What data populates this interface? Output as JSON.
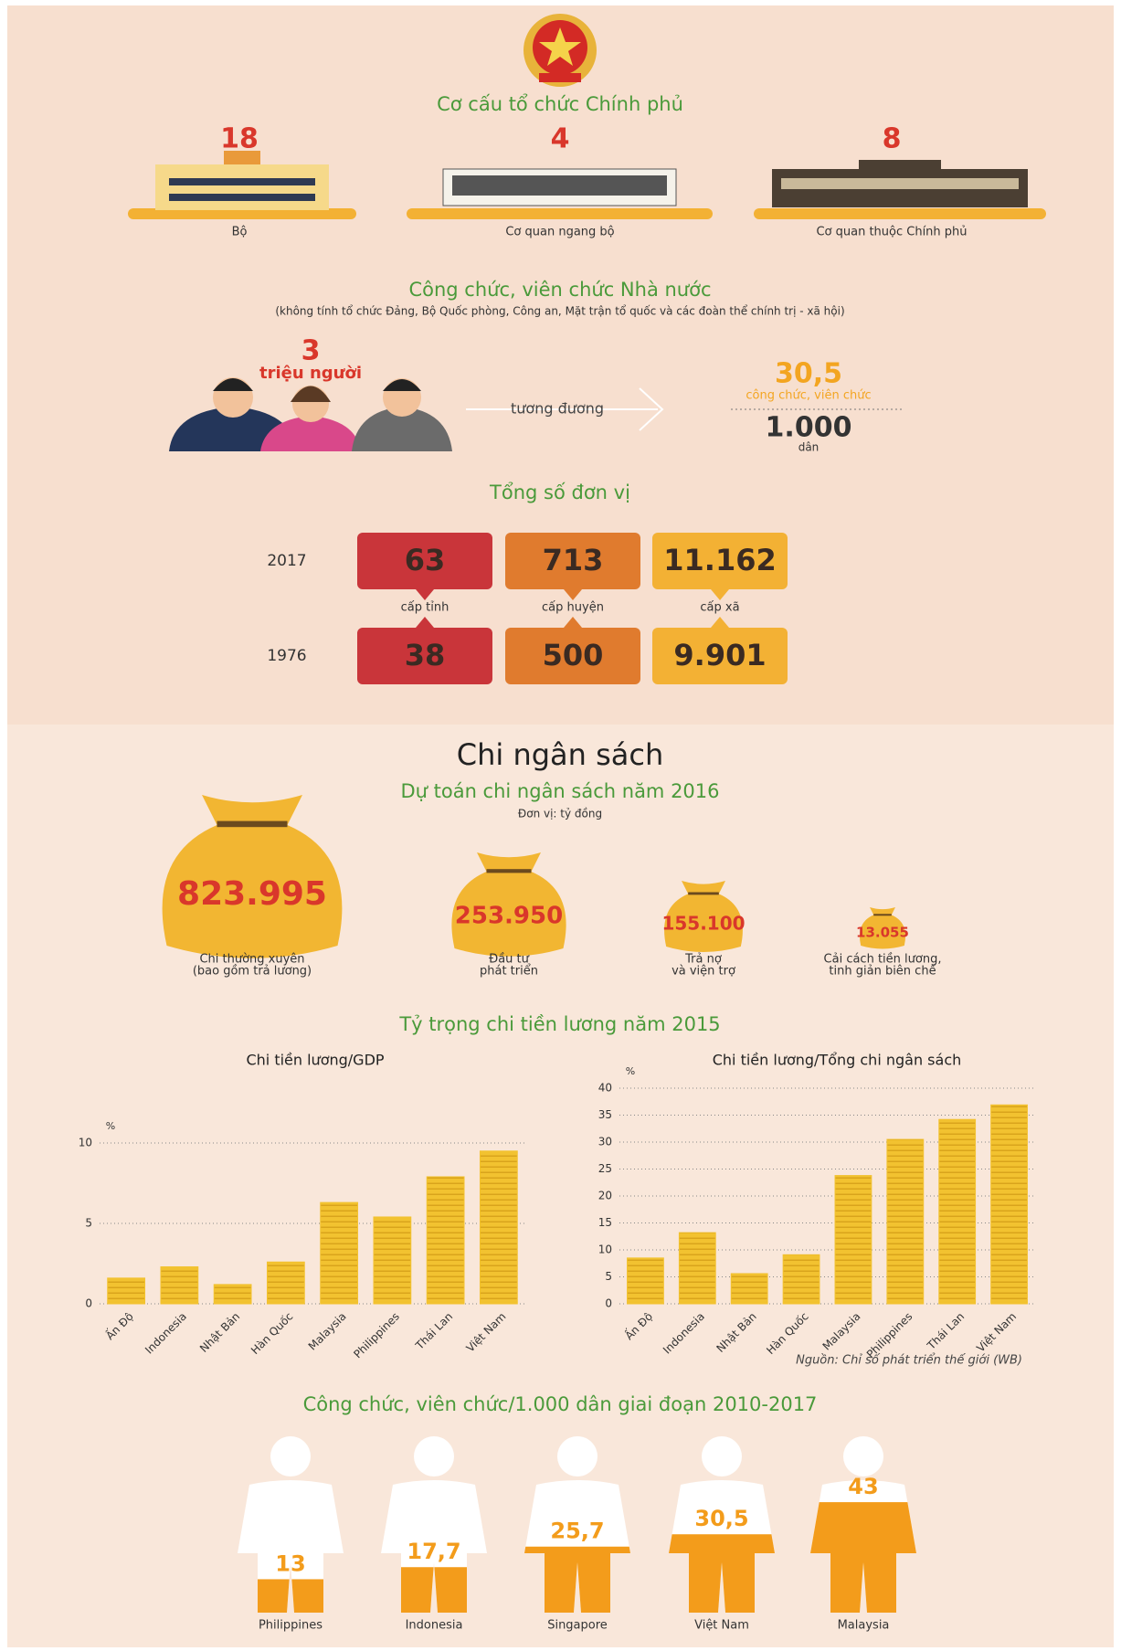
{
  "org": {
    "title": "Cơ cấu tổ chức Chính phủ",
    "items": [
      {
        "value": "18",
        "label": "Bộ"
      },
      {
        "value": "4",
        "label": "Cơ quan ngang bộ"
      },
      {
        "value": "8",
        "label": "Cơ quan thuộc Chính phủ"
      }
    ]
  },
  "staff": {
    "title": "Công chức, viên chức Nhà nước",
    "note": "(không tính tổ chức Đảng, Bộ Quốc phòng, Công an, Mặt trận tổ quốc và các đoàn thể chính trị - xã hội)",
    "total": "3",
    "total_unit": "triệu người",
    "equivalent": "tương đương",
    "ratio": "30,5",
    "ratio_label": "công chức, viên chức",
    "per": "1.000",
    "per_label": "dân"
  },
  "units": {
    "title": "Tổng số đơn vị",
    "levels": [
      "cấp tỉnh",
      "cấp huyện",
      "cấp xã"
    ],
    "rows": [
      {
        "year": "2017",
        "values": [
          "63",
          "713",
          "11.162"
        ]
      },
      {
        "year": "1976",
        "values": [
          "38",
          "500",
          "9.901"
        ]
      }
    ]
  },
  "budget": {
    "heading": "Chi ngân sách",
    "title": "Dự toán chi ngân sách năm 2016",
    "unit": "Đơn vị: tỷ đồng",
    "items": [
      {
        "value": "823.995",
        "label": [
          "Chi thường xuyên",
          "(bao gồm trả lương)"
        ]
      },
      {
        "value": "253.950",
        "label": [
          "Đầu tư",
          "phát triển"
        ]
      },
      {
        "value": "155.100",
        "label": [
          "Trả nợ",
          "và viện trợ"
        ]
      },
      {
        "value": "13.055",
        "label": [
          "Cải cách tiền lương,",
          "tinh giản biên chế"
        ]
      }
    ]
  },
  "salary_title": "Tỷ trọng chi tiền lương năm 2015",
  "source": "Nguồn: Chỉ số phát triển thế giới (WB)",
  "chart_data": [
    {
      "type": "bar",
      "title": "Chi tiền lương/GDP",
      "y_label": "%",
      "categories": [
        "Ấn Độ",
        "Indonesia",
        "Nhật Bản",
        "Hàn Quốc",
        "Malaysia",
        "Philippines",
        "Thái Lan",
        "Việt Nam"
      ],
      "values": [
        1.6,
        2.3,
        1.2,
        2.6,
        6.3,
        5.4,
        7.9,
        9.5
      ],
      "color": "#f2c230",
      "ylim": [
        0,
        10
      ],
      "yticks": [
        0,
        5,
        10
      ],
      "grid": true
    },
    {
      "type": "bar",
      "title": "Chi tiền lương/Tổng chi ngân sách",
      "y_label": "%",
      "categories": [
        "Ấn Độ",
        "Indonesia",
        "Nhật Bản",
        "Hàn Quốc",
        "Malaysia",
        "Philippines",
        "Thái Lan",
        "Việt Nam"
      ],
      "values": [
        8.5,
        13.2,
        5.6,
        9.1,
        23.8,
        30.5,
        34.2,
        36.9
      ],
      "color": "#f2c230",
      "ylim": [
        0,
        40
      ],
      "yticks": [
        0,
        5,
        10,
        15,
        20,
        25,
        30,
        35,
        40
      ],
      "grid": true
    },
    {
      "type": "pictogram",
      "title": "Công chức, viên chức/1.000 dân giai đoạn 2010-2017",
      "categories": [
        "Philippines",
        "Indonesia",
        "Singapore",
        "Việt Nam",
        "Malaysia"
      ],
      "values": [
        13,
        17.7,
        25.7,
        30.5,
        43
      ],
      "value_labels": [
        "13",
        "17,7",
        "25,7",
        "30,5",
        "43"
      ],
      "color": "#f39c1b"
    }
  ]
}
